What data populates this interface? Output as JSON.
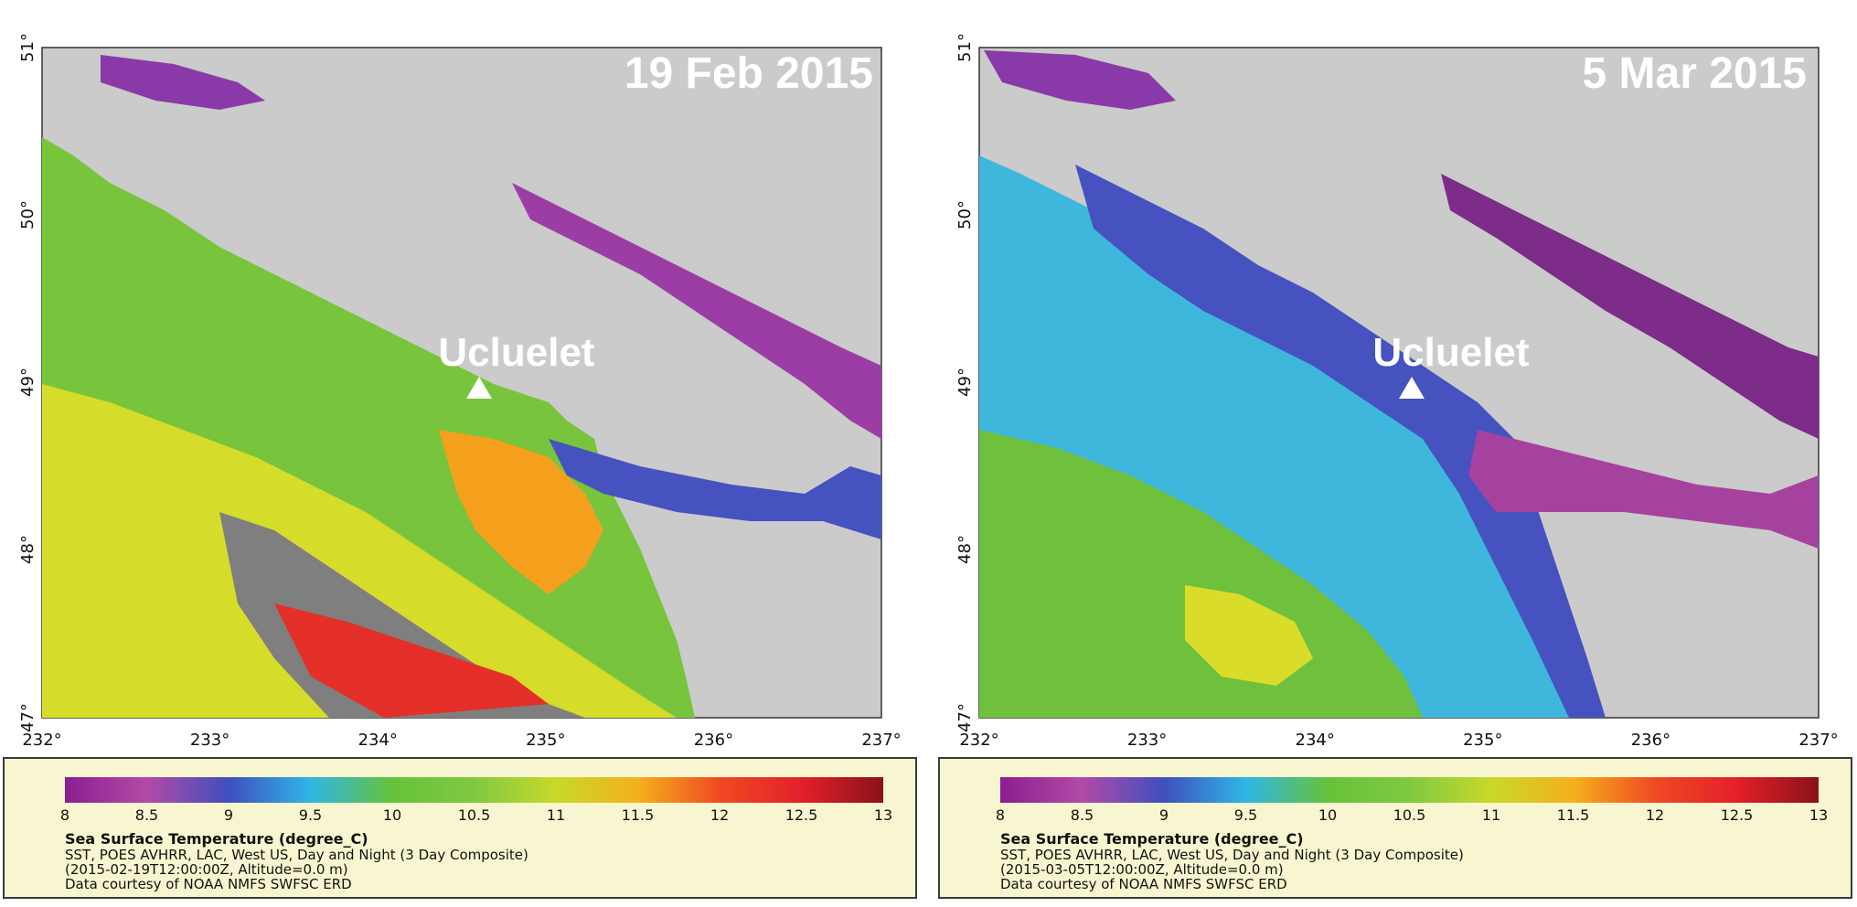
{
  "panels": [
    {
      "id": "left",
      "date_label": "19 Feb 2015",
      "location_label": "Ucluelet",
      "location": {
        "lon": 234.52,
        "lat": 48.94
      },
      "x_ticks": [
        "232°",
        "233°",
        "234°",
        "235°",
        "236°",
        "237°"
      ],
      "y_ticks": [
        "51°",
        "50°",
        "49°",
        "48°",
        "47°"
      ],
      "extent": {
        "lon_min": 232,
        "lon_max": 237,
        "lat_min": 47,
        "lat_max": 51
      },
      "legend": {
        "title": "Sea Surface Temperature (degree_C)",
        "line1": "SST, POES AVHRR, LAC, West US, Day and Night (3 Day Composite)",
        "line2": "(2015-02-19T12:00:00Z, Altitude=0.0 m)",
        "line3": "Data courtesy of NOAA NMFS SWFSC ERD",
        "ticks": [
          "8",
          "8.5",
          "9",
          "9.5",
          "10",
          "10.5",
          "11",
          "11.5",
          "12",
          "12.5",
          "13"
        ]
      }
    },
    {
      "id": "right",
      "date_label": "5 Mar 2015",
      "location_label": "Ucluelet",
      "location": {
        "lon": 234.52,
        "lat": 48.94
      },
      "x_ticks": [
        "232°",
        "233°",
        "234°",
        "235°",
        "236°",
        "237°"
      ],
      "y_ticks": [
        "51°",
        "50°",
        "49°",
        "48°",
        "47°"
      ],
      "extent": {
        "lon_min": 232,
        "lon_max": 237,
        "lat_min": 47,
        "lat_max": 51
      },
      "legend": {
        "title": "Sea Surface Temperature (degree_C)",
        "line1": "SST, POES AVHRR, LAC, West US, Day and Night (3 Day Composite)",
        "line2": "(2015-03-05T12:00:00Z, Altitude=0.0 m)",
        "line3": "Data courtesy of NOAA NMFS SWFSC ERD",
        "ticks": [
          "8",
          "8.5",
          "9",
          "9.5",
          "10",
          "10.5",
          "11",
          "11.5",
          "12",
          "12.5",
          "13"
        ]
      }
    }
  ],
  "colors": {
    "land": "#cbcbcb",
    "no_data": "#7f7f7f",
    "legend_bg": "#f8f6d0",
    "colorbar": [
      "#8b1f8f",
      "#b24aa6",
      "#6a3db0",
      "#3f4fbf",
      "#2fb6e6",
      "#66c23a",
      "#7fc941",
      "#c8d82a",
      "#f2e21a",
      "#f5a21b",
      "#ef4a23",
      "#e3202a",
      "#8b1219"
    ]
  }
}
